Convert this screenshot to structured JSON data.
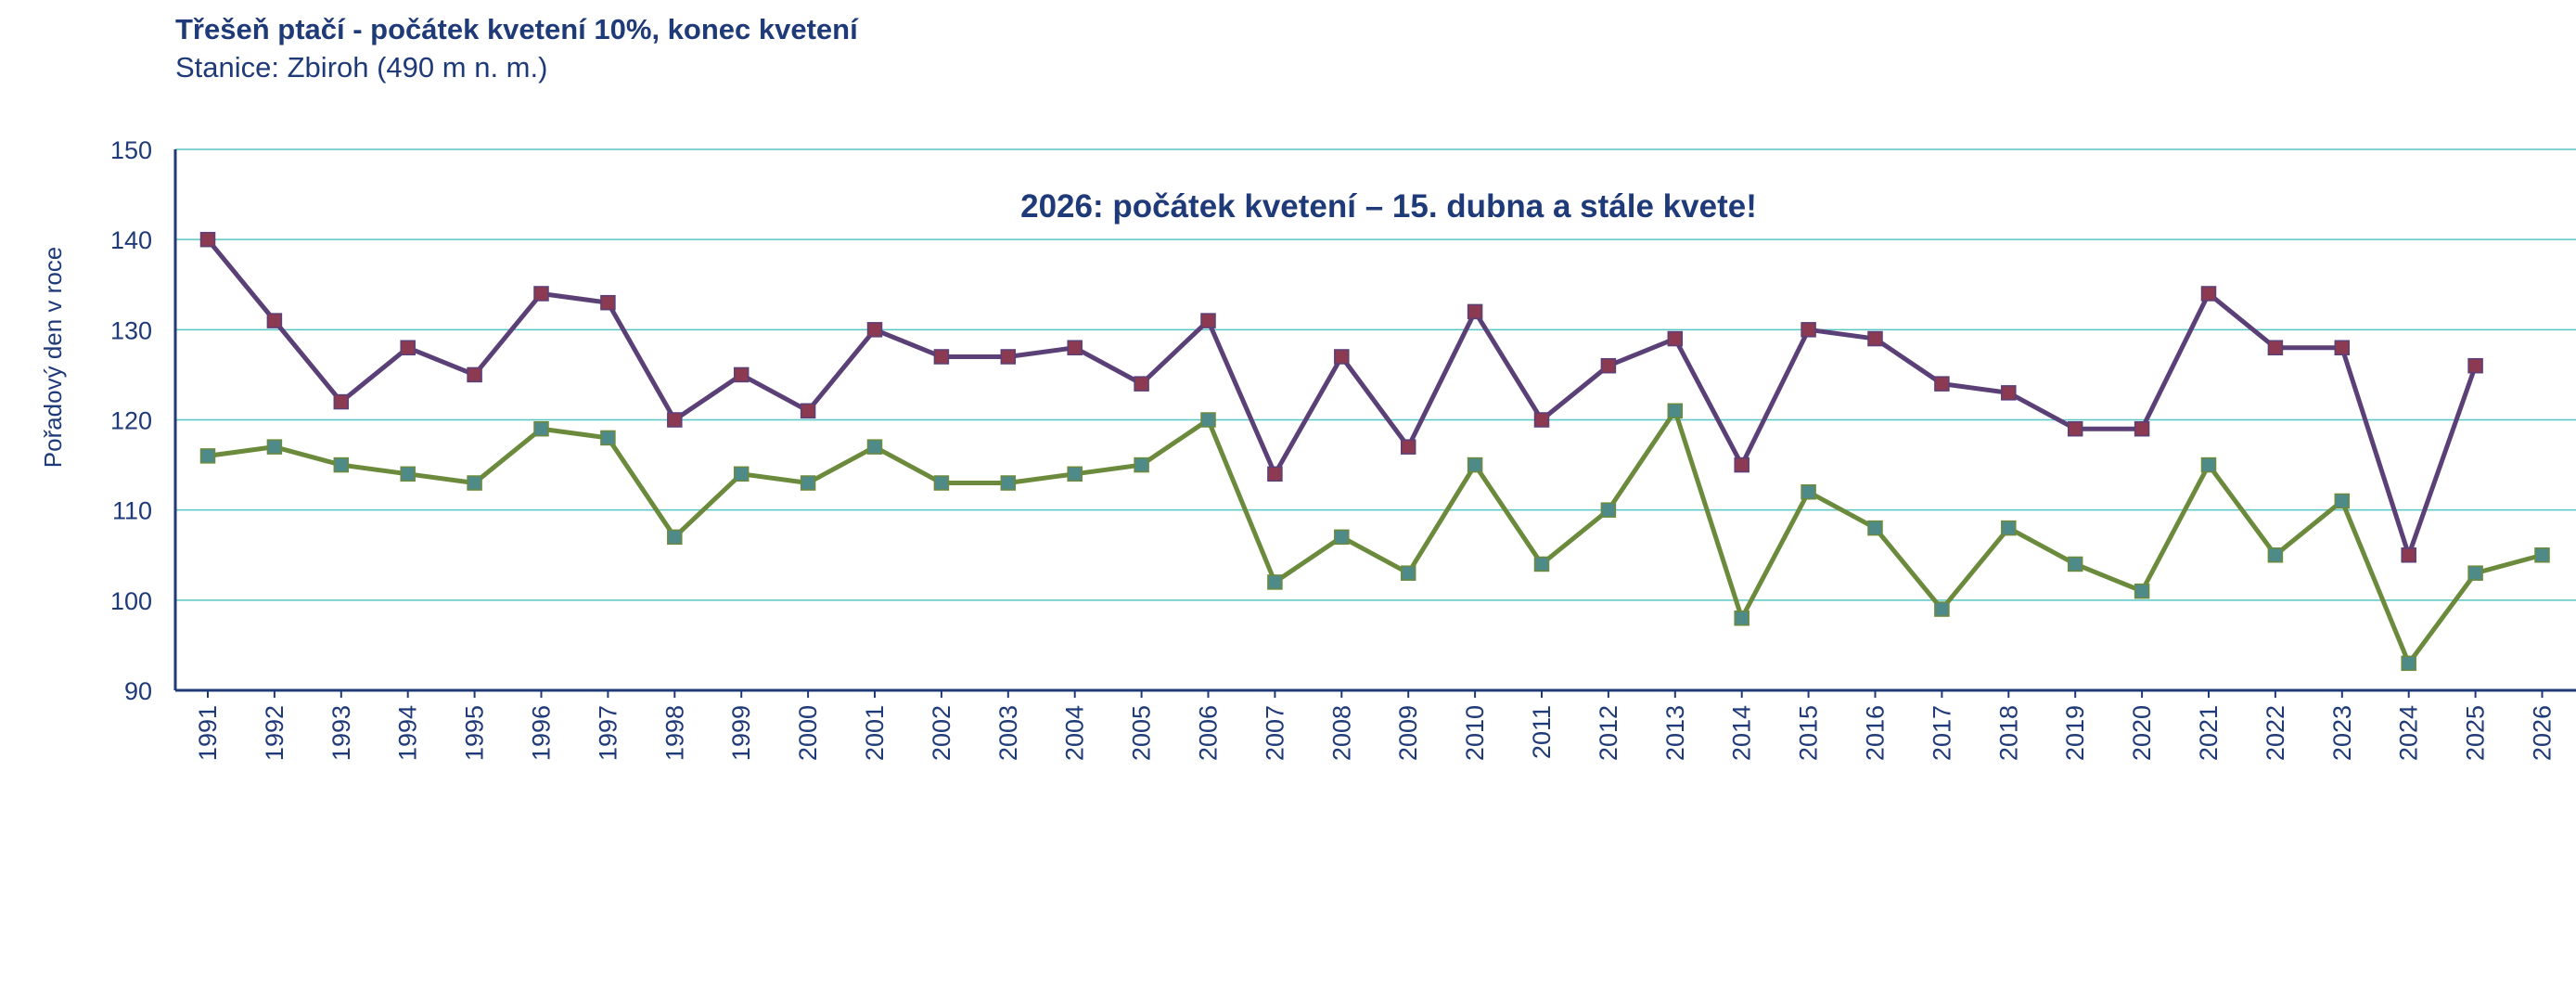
{
  "chart_data": {
    "type": "line",
    "title": "Třešeň ptačí - počátek kvetení 10%, konec kvetení",
    "subtitle": "Stanice: Zbiroh (490 m n. m.)",
    "annotation": "2026: počátek kvetení – 15. dubna a stále kvete!",
    "xlabel": "",
    "ylabel": "Pořadový den v roce",
    "ylim": [
      90,
      150
    ],
    "yticks": [
      90,
      100,
      110,
      120,
      130,
      140,
      150
    ],
    "grid": true,
    "categories": [
      "1991",
      "1992",
      "1993",
      "1994",
      "1995",
      "1996",
      "1997",
      "1998",
      "1999",
      "2000",
      "2001",
      "2002",
      "2003",
      "2004",
      "2005",
      "2006",
      "2007",
      "2008",
      "2009",
      "2010",
      "2011",
      "2012",
      "2013",
      "2014",
      "2015",
      "2016",
      "2017",
      "2018",
      "2019",
      "2020",
      "2021",
      "2022",
      "2023",
      "2024",
      "2025",
      "2026"
    ],
    "series": [
      {
        "name": "konec kvetení",
        "line_color": "#5b3f77",
        "marker_color": "#8b3a52",
        "values": [
          140,
          131,
          122,
          128,
          125,
          134,
          133,
          120,
          125,
          121,
          130,
          127,
          127,
          128,
          124,
          131,
          114,
          127,
          117,
          132,
          120,
          126,
          129,
          115,
          130,
          129,
          124,
          123,
          119,
          119,
          134,
          128,
          128,
          105,
          126,
          null
        ]
      },
      {
        "name": "počátek kvetení 10%",
        "line_color": "#6b8a3c",
        "marker_color": "#4e8a88",
        "values": [
          116,
          117,
          115,
          114,
          113,
          119,
          118,
          107,
          114,
          113,
          117,
          113,
          113,
          114,
          115,
          120,
          102,
          107,
          103,
          115,
          104,
          110,
          121,
          98,
          112,
          108,
          99,
          108,
          104,
          101,
          115,
          105,
          111,
          93,
          103,
          105
        ]
      }
    ],
    "colors": {
      "text": "#1f3a78",
      "axis": "#1f3a78",
      "grid": "#58c4c4"
    }
  }
}
